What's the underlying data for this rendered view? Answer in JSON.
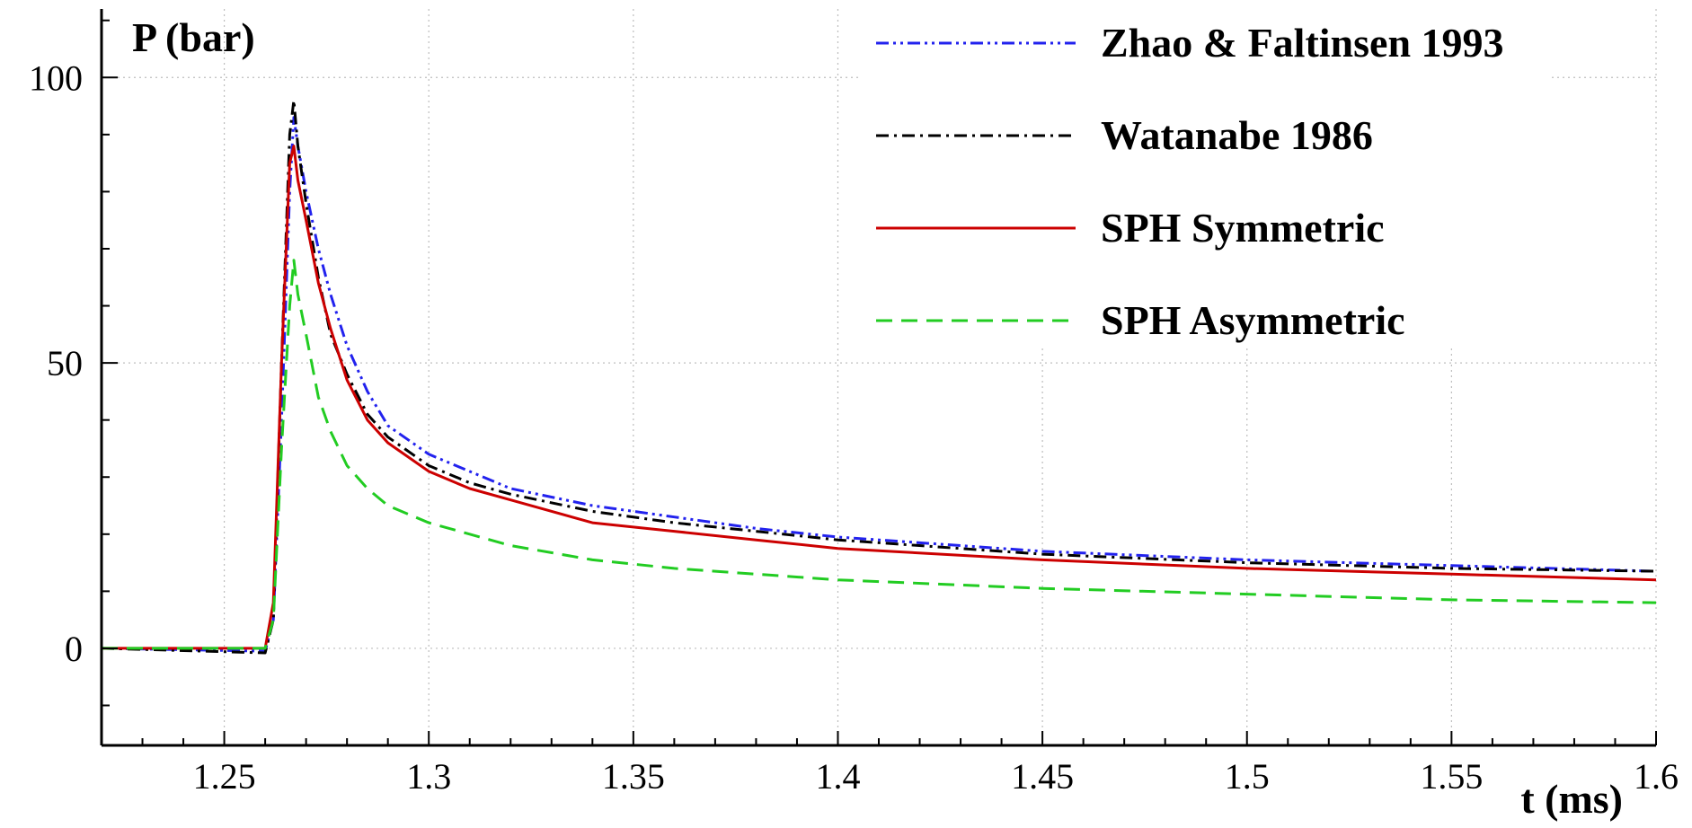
{
  "chart_data": {
    "type": "line",
    "ylabel": "P (bar)",
    "xlabel": "t (ms)",
    "xlim": [
      1.22,
      1.6
    ],
    "ylim": [
      -17,
      112
    ],
    "x_ticks": [
      "1.25",
      "1.3",
      "1.35",
      "1.4",
      "1.45",
      "1.5",
      "1.55",
      "1.6"
    ],
    "y_ticks": [
      "0",
      "50",
      "100"
    ],
    "grid": true,
    "legend_position": "top-right",
    "series": [
      {
        "name": "Zhao & Faltinsen 1993",
        "color": "#2222ee",
        "style": "dash-dot-dot",
        "x": [
          1.22,
          1.26,
          1.262,
          1.264,
          1.266,
          1.267,
          1.268,
          1.27,
          1.273,
          1.276,
          1.28,
          1.285,
          1.29,
          1.3,
          1.31,
          1.32,
          1.34,
          1.36,
          1.38,
          1.4,
          1.45,
          1.5,
          1.55,
          1.6
        ],
        "y": [
          0,
          -0.5,
          5,
          40,
          80,
          93,
          88,
          80,
          70,
          62,
          53,
          45,
          39,
          34,
          31,
          28,
          25,
          23,
          21,
          19.5,
          17,
          15.5,
          14.5,
          13.5
        ]
      },
      {
        "name": "Watanabe 1986",
        "color": "#000000",
        "style": "dash-dot",
        "x": [
          1.22,
          1.26,
          1.262,
          1.264,
          1.266,
          1.267,
          1.268,
          1.27,
          1.273,
          1.276,
          1.28,
          1.285,
          1.29,
          1.3,
          1.31,
          1.32,
          1.34,
          1.36,
          1.38,
          1.4,
          1.45,
          1.5,
          1.55,
          1.6
        ],
        "y": [
          0,
          -0.8,
          5,
          50,
          90,
          96,
          88,
          78,
          65,
          55,
          48,
          41,
          37,
          32,
          29,
          27,
          24,
          22,
          20.5,
          19,
          16.5,
          15,
          14,
          13.5
        ]
      },
      {
        "name": "SPH Symmetric",
        "color": "#cc0000",
        "style": "solid",
        "x": [
          1.22,
          1.26,
          1.262,
          1.264,
          1.266,
          1.267,
          1.268,
          1.27,
          1.273,
          1.276,
          1.28,
          1.285,
          1.29,
          1.3,
          1.31,
          1.32,
          1.34,
          1.36,
          1.38,
          1.4,
          1.45,
          1.5,
          1.55,
          1.6
        ],
        "y": [
          0,
          0,
          8,
          50,
          85,
          88,
          82,
          75,
          64,
          56,
          47,
          40,
          36,
          31,
          28,
          26,
          22,
          20.5,
          19,
          17.5,
          15.5,
          14,
          13,
          12
        ]
      },
      {
        "name": "SPH Asymmetric",
        "color": "#22cc22",
        "style": "dashed",
        "x": [
          1.22,
          1.26,
          1.262,
          1.264,
          1.266,
          1.267,
          1.268,
          1.27,
          1.273,
          1.276,
          1.28,
          1.285,
          1.29,
          1.3,
          1.31,
          1.32,
          1.34,
          1.36,
          1.38,
          1.4,
          1.45,
          1.5,
          1.55,
          1.6
        ],
        "y": [
          0,
          0,
          5,
          35,
          60,
          68,
          62,
          55,
          44,
          38,
          32,
          28,
          25,
          22,
          20,
          18,
          15.5,
          14,
          13,
          12,
          10.5,
          9.5,
          8.5,
          8
        ]
      }
    ]
  }
}
